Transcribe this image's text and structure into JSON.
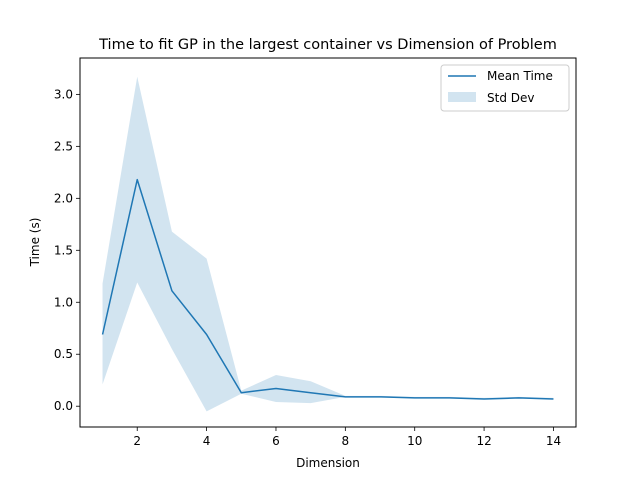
{
  "chart_data": {
    "type": "line",
    "title": "Time to fit GP in the largest container vs Dimension of Problem",
    "xlabel": "Dimension",
    "ylabel": "Time (s)",
    "xlim": [
      0.35,
      14.65
    ],
    "ylim": [
      -0.2,
      3.35
    ],
    "xticks": [
      2,
      4,
      6,
      8,
      10,
      12,
      14
    ],
    "yticks": [
      0.0,
      0.5,
      1.0,
      1.5,
      2.0,
      2.5,
      3.0
    ],
    "xtick_labels": [
      "2",
      "4",
      "6",
      "8",
      "10",
      "12",
      "14"
    ],
    "ytick_labels": [
      "0.0",
      "0.5",
      "1.0",
      "1.5",
      "2.0",
      "2.5",
      "3.0"
    ],
    "grid": false,
    "legend_position": "top-right",
    "x": [
      1,
      2,
      3,
      4,
      5,
      6,
      7,
      8,
      9,
      10,
      11,
      12,
      13,
      14
    ],
    "series": [
      {
        "name": "Mean Time",
        "type": "line",
        "color": "#1f77b4",
        "values": [
          0.69,
          2.18,
          1.11,
          0.69,
          0.13,
          0.17,
          0.13,
          0.09,
          0.09,
          0.08,
          0.08,
          0.07,
          0.08,
          0.07
        ]
      },
      {
        "name": "Std Dev",
        "type": "band",
        "color": "#1f77b4",
        "opacity": 0.2,
        "lower": [
          0.21,
          1.19,
          0.55,
          -0.05,
          0.12,
          0.04,
          0.03,
          0.09,
          0.09,
          0.08,
          0.08,
          0.07,
          0.08,
          0.07
        ],
        "upper": [
          1.18,
          3.17,
          1.68,
          1.42,
          0.15,
          0.3,
          0.24,
          0.1,
          0.1,
          0.09,
          0.09,
          0.08,
          0.09,
          0.08
        ]
      }
    ]
  }
}
